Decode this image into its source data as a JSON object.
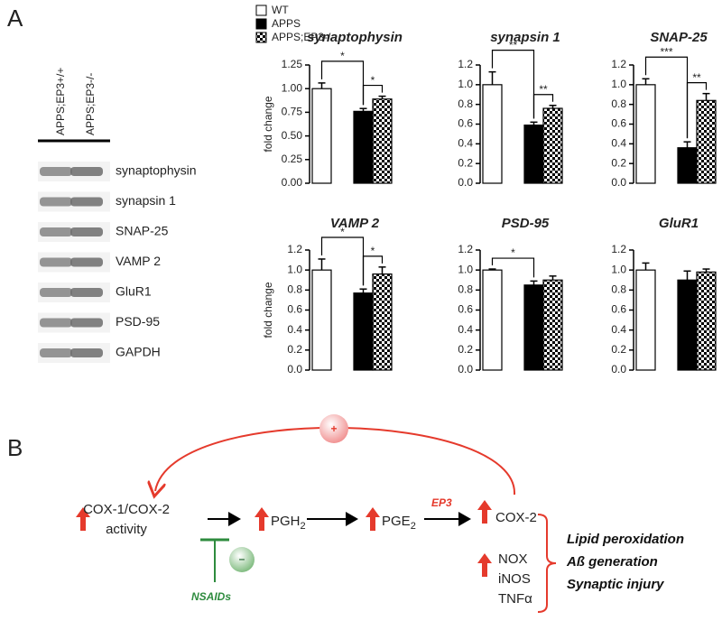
{
  "panel_labels": [
    "A",
    "B"
  ],
  "blot": {
    "lanes": [
      "APPS;EP3+/+",
      "APPS;EP3-/-"
    ],
    "bands": [
      "synaptophysin",
      "synapsin 1",
      "SNAP-25",
      "VAMP 2",
      "GluR1",
      "PSD-95",
      "GAPDH"
    ]
  },
  "legend": [
    {
      "name": "WT",
      "fill": "#ffffff"
    },
    {
      "name": "APPS",
      "fill": "#000000"
    },
    {
      "name": "APPS;EP3-/-",
      "fill": "checker"
    }
  ],
  "chart_data": [
    {
      "type": "bar",
      "title": "synaptophysin",
      "ylabel": "fold change",
      "values": [
        1.0,
        0.76,
        0.89
      ],
      "errors": [
        0.06,
        0.03,
        0.03
      ],
      "ylim": [
        0,
        1.25
      ],
      "yticks": [
        {
          "value": 0,
          "label": "0.00"
        },
        0.25,
        {
          "value": 0.5,
          "label": "0.50"
        },
        0.75,
        {
          "value": 1,
          "label": "1.00"
        },
        1.25
      ],
      "brackets": [
        {
          "text": "*",
          "between": [
            0,
            1
          ]
        },
        {
          "text": "*",
          "between": [
            1,
            2
          ]
        }
      ]
    },
    {
      "type": "bar",
      "title": "synapsin 1",
      "values": [
        1.0,
        0.59,
        0.76
      ],
      "errors": [
        0.13,
        0.03,
        0.03
      ],
      "ylim": [
        0,
        1.2
      ],
      "yticks": [
        {
          "value": 0,
          "label": "0.0"
        },
        0.2,
        0.4,
        0.6,
        0.8,
        {
          "value": 1,
          "label": "1.0"
        },
        1.2
      ],
      "brackets": [
        {
          "text": "**",
          "between": [
            0,
            1
          ]
        },
        {
          "text": "**",
          "between": [
            1,
            2
          ]
        }
      ]
    },
    {
      "type": "bar",
      "title": "SNAP-25",
      "values": [
        1.0,
        0.36,
        0.84
      ],
      "errors": [
        0.06,
        0.06,
        0.07
      ],
      "ylim": [
        0,
        1.2
      ],
      "yticks": [
        {
          "value": 0,
          "label": "0.0"
        },
        0.2,
        0.4,
        0.6,
        0.8,
        {
          "value": 1,
          "label": "1.0"
        },
        1.2
      ],
      "brackets": [
        {
          "text": "***",
          "between": [
            0,
            1
          ]
        },
        {
          "text": "**",
          "between": [
            1,
            2
          ]
        }
      ]
    },
    {
      "type": "bar",
      "title": "VAMP 2",
      "ylabel": "fold change",
      "values": [
        1.0,
        0.77,
        0.96
      ],
      "errors": [
        0.11,
        0.04,
        0.07
      ],
      "ylim": [
        0,
        1.2
      ],
      "yticks": [
        {
          "value": 0,
          "label": "0.0"
        },
        0.2,
        0.4,
        0.6,
        0.8,
        {
          "value": 1,
          "label": "1.0"
        },
        1.2
      ],
      "brackets": [
        {
          "text": "*",
          "between": [
            0,
            1
          ]
        },
        {
          "text": "*",
          "between": [
            1,
            2
          ]
        }
      ]
    },
    {
      "type": "bar",
      "title": "PSD-95",
      "values": [
        1.0,
        0.85,
        0.9
      ],
      "errors": [
        0.01,
        0.04,
        0.04
      ],
      "ylim": [
        0,
        1.2
      ],
      "yticks": [
        {
          "value": 0,
          "label": "0.0"
        },
        0.2,
        0.4,
        0.6,
        0.8,
        {
          "value": 1,
          "label": "1.0"
        },
        1.2
      ],
      "brackets": [
        {
          "text": "*",
          "between": [
            0,
            1
          ]
        }
      ]
    },
    {
      "type": "bar",
      "title": "GluR1",
      "values": [
        1.0,
        0.9,
        0.98
      ],
      "errors": [
        0.07,
        0.09,
        0.03
      ],
      "ylim": [
        0,
        1.2
      ],
      "yticks": [
        {
          "value": 0,
          "label": "0.0"
        },
        0.2,
        0.4,
        0.6,
        0.8,
        {
          "value": 1,
          "label": "1.0"
        },
        1.2
      ],
      "brackets": []
    }
  ],
  "diagram": {
    "cox_activity": [
      "COX-1/COX-2",
      "activity"
    ],
    "pgh": {
      "text": "PGH",
      "sub": "2"
    },
    "pge": {
      "text": "PGE",
      "sub": "2"
    },
    "ep3": "EP3",
    "cox2": "COX-2",
    "mediators": [
      "NOX",
      "iNOS",
      "TNFα"
    ],
    "plus": "+",
    "minus": "–",
    "nsaids": "NSAIDs",
    "outcomes": [
      "Lipid peroxidation",
      "Aß generation",
      "Synaptic injury"
    ]
  }
}
